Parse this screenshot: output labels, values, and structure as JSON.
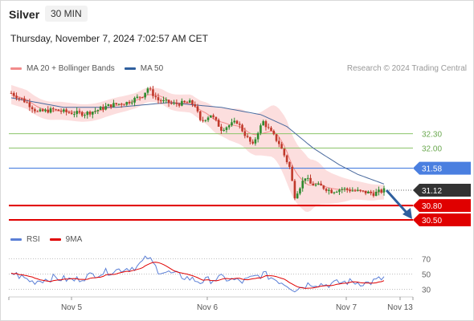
{
  "header": {
    "instrument": "Silver",
    "timeframe": "30 MIN",
    "datetime": "Thursday, November 7, 2024 7:02:57 AM CET"
  },
  "legend": {
    "main": [
      {
        "label": "MA 20 + Bollinger Bands",
        "color": "#f28b8b"
      },
      {
        "label": "MA 50",
        "color": "#2f5f9e"
      }
    ],
    "rsi": [
      {
        "label": "RSI",
        "color": "#5b7fd6"
      },
      {
        "label": "9MA",
        "color": "#e00000"
      }
    ]
  },
  "credit": "Research © 2024 Trading Central",
  "colors": {
    "up": "#2e8b2e",
    "down": "#c0392b",
    "resistance": "#8cc46a",
    "pivot": "#4a7fe0",
    "support": "#e00000",
    "last": "#333333",
    "arrow": "#2f5f9e"
  },
  "chart_data": {
    "type": "candlestick",
    "price_range": [
      30.4,
      33.45
    ],
    "levels": [
      {
        "value": 32.3,
        "label": "32.30",
        "kind": "resistance"
      },
      {
        "value": 32.0,
        "label": "32.00",
        "kind": "resistance"
      },
      {
        "value": 31.58,
        "label": "31.58",
        "kind": "pivot"
      },
      {
        "value": 31.12,
        "label": "31.12",
        "kind": "last"
      },
      {
        "value": 30.8,
        "label": "30.80",
        "kind": "support"
      },
      {
        "value": 30.5,
        "label": "30.50",
        "kind": "support"
      }
    ],
    "x_labels": [
      "Nov 5",
      "Nov 6",
      "Nov 7",
      "Nov 13"
    ],
    "close_anchors": [
      [
        0,
        33.15
      ],
      [
        6,
        32.95
      ],
      [
        10,
        32.75
      ],
      [
        16,
        32.8
      ],
      [
        22,
        32.74
      ],
      [
        28,
        32.72
      ],
      [
        32,
        32.78
      ],
      [
        38,
        32.9
      ],
      [
        44,
        32.95
      ],
      [
        50,
        33.1
      ],
      [
        52,
        33.25
      ],
      [
        56,
        33.0
      ],
      [
        62,
        32.92
      ],
      [
        68,
        32.95
      ],
      [
        70,
        32.9
      ],
      [
        72,
        32.55
      ],
      [
        76,
        32.7
      ],
      [
        80,
        32.4
      ],
      [
        86,
        32.55
      ],
      [
        90,
        32.2
      ],
      [
        92,
        32.05
      ],
      [
        94,
        32.35
      ],
      [
        96,
        32.55
      ],
      [
        98,
        32.4
      ],
      [
        102,
        32.1
      ],
      [
        106,
        31.6
      ],
      [
        108,
        31.0
      ],
      [
        112,
        31.4
      ],
      [
        114,
        31.25
      ],
      [
        118,
        31.2
      ],
      [
        122,
        31.1
      ],
      [
        126,
        31.15
      ],
      [
        132,
        31.1
      ],
      [
        138,
        31.05
      ],
      [
        142,
        31.12
      ]
    ],
    "ma50_anchors": [
      [
        0,
        33.05
      ],
      [
        20,
        32.85
      ],
      [
        40,
        32.85
      ],
      [
        60,
        32.95
      ],
      [
        80,
        32.85
      ],
      [
        95,
        32.7
      ],
      [
        105,
        32.45
      ],
      [
        115,
        32.0
      ],
      [
        125,
        31.65
      ],
      [
        132,
        31.45
      ],
      [
        142,
        31.25
      ]
    ],
    "bollinger_width_anchors": [
      [
        0,
        0.2
      ],
      [
        30,
        0.18
      ],
      [
        55,
        0.15
      ],
      [
        72,
        0.2
      ],
      [
        85,
        0.35
      ],
      [
        95,
        0.45
      ],
      [
        105,
        0.65
      ],
      [
        112,
        0.6
      ],
      [
        120,
        0.35
      ],
      [
        130,
        0.2
      ],
      [
        142,
        0.15
      ]
    ],
    "rsi": {
      "range": [
        20,
        80
      ],
      "ticks": [
        70,
        50,
        30
      ],
      "anchors": [
        [
          0,
          52
        ],
        [
          8,
          40
        ],
        [
          16,
          45
        ],
        [
          24,
          42
        ],
        [
          32,
          50
        ],
        [
          40,
          55
        ],
        [
          48,
          60
        ],
        [
          52,
          72
        ],
        [
          56,
          55
        ],
        [
          64,
          48
        ],
        [
          72,
          40
        ],
        [
          80,
          45
        ],
        [
          88,
          40
        ],
        [
          96,
          50
        ],
        [
          104,
          38
        ],
        [
          108,
          30
        ],
        [
          114,
          38
        ],
        [
          120,
          36
        ],
        [
          128,
          40
        ],
        [
          136,
          38
        ],
        [
          142,
          45
        ]
      ]
    }
  }
}
